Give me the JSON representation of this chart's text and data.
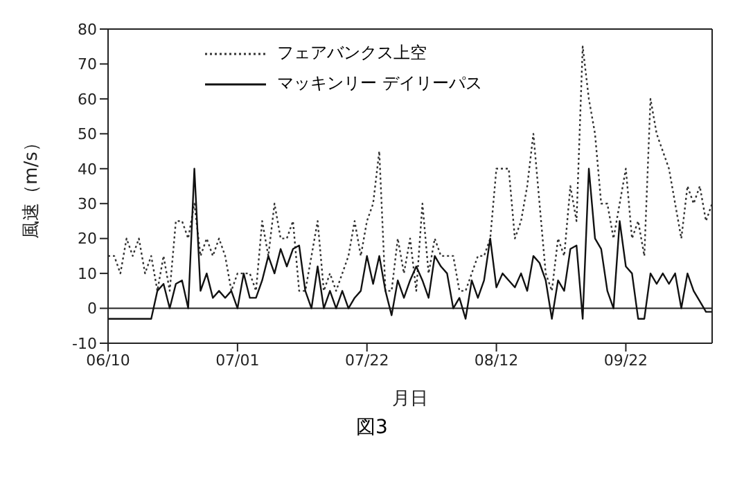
{
  "chart_data": {
    "type": "line",
    "xlabel": "月日",
    "ylabel": "風速（m/s）",
    "annotations": [
      "図3"
    ],
    "categories": [
      "06/10",
      null,
      null,
      null,
      null,
      null,
      null,
      null,
      null,
      null,
      null,
      null,
      null,
      null,
      null,
      null,
      null,
      null,
      null,
      null,
      null,
      "07/01",
      null,
      null,
      null,
      null,
      null,
      null,
      null,
      null,
      null,
      null,
      null,
      null,
      null,
      null,
      null,
      null,
      null,
      null,
      null,
      null,
      "07/22",
      null,
      null,
      null,
      null,
      null,
      null,
      null,
      null,
      null,
      null,
      null,
      null,
      null,
      null,
      null,
      null,
      null,
      null,
      null,
      null,
      "08/12",
      null,
      null,
      null,
      null,
      null,
      null,
      null,
      null,
      null,
      null,
      null,
      null,
      null,
      null,
      null,
      null,
      null,
      null,
      null,
      null,
      "09/22",
      null,
      null,
      null,
      null,
      null,
      null,
      null,
      null,
      null,
      null,
      null,
      null,
      null,
      null
    ],
    "ylim": [
      -10,
      80
    ],
    "yticks": [
      -10,
      0,
      10,
      20,
      30,
      40,
      50,
      60,
      70,
      80
    ],
    "grid": false,
    "legend": "top left",
    "marker": "none",
    "ref_lines": [
      {
        "axis": "y",
        "value": 0,
        "label": null,
        "color": "#222222"
      }
    ],
    "series": [
      {
        "name": "フェアバンクス上空",
        "color": "#333333",
        "line_style": "dotted",
        "values": [
          15,
          15,
          10,
          20,
          15,
          20,
          10,
          15,
          5,
          15,
          5,
          25,
          25,
          20,
          30,
          15,
          20,
          15,
          20,
          15,
          5,
          10,
          10,
          10,
          5,
          25,
          15,
          30,
          20,
          20,
          25,
          5,
          5,
          15,
          25,
          5,
          10,
          5,
          10,
          15,
          25,
          15,
          25,
          30,
          45,
          5,
          5,
          20,
          10,
          20,
          5,
          30,
          10,
          20,
          15,
          15,
          15,
          5,
          5,
          10,
          15,
          15,
          20,
          40,
          40,
          40,
          20,
          25,
          35,
          50,
          30,
          10,
          5,
          20,
          15,
          35,
          25,
          75,
          60,
          50,
          30,
          30,
          20,
          30,
          40,
          20,
          25,
          15,
          60,
          50,
          45,
          40,
          30,
          20,
          35,
          30,
          35,
          25,
          30
        ]
      },
      {
        "name": "マッキンリー デイリーパス",
        "color": "#111111",
        "line_style": "solid",
        "values": [
          -3,
          -3,
          -3,
          -3,
          -3,
          -3,
          -3,
          -3,
          5,
          7,
          0,
          7,
          8,
          0,
          40,
          5,
          10,
          3,
          5,
          3,
          5,
          0,
          10,
          3,
          3,
          8,
          15,
          10,
          17,
          12,
          17,
          18,
          5,
          0,
          12,
          0,
          5,
          0,
          5,
          0,
          3,
          5,
          15,
          7,
          15,
          5,
          -2,
          8,
          3,
          8,
          12,
          8,
          3,
          15,
          12,
          10,
          0,
          3,
          -3,
          8,
          3,
          8,
          20,
          6,
          10,
          8,
          6,
          10,
          5,
          15,
          13,
          8,
          -3,
          8,
          5,
          17,
          18,
          -3,
          40,
          20,
          17,
          5,
          0,
          25,
          12,
          10,
          -3,
          -3,
          10,
          7,
          10,
          7,
          10,
          0,
          10,
          5,
          2,
          -1,
          -1
        ]
      }
    ]
  }
}
